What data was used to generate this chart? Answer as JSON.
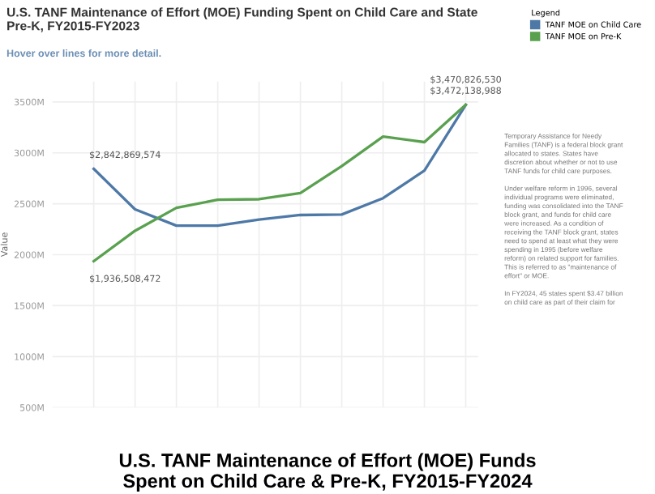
{
  "chart_data": {
    "type": "line",
    "title": "U.S. TANF Maintenance of Effort (MOE) Funding Spent on Child Care and State\nPre-K, FY2015-FY2023",
    "subtitle": "Hover over lines for more detail.",
    "ylabel": "Value",
    "legend_title": "Legend",
    "categories": [
      null,
      null,
      null,
      null,
      null,
      null,
      null,
      null,
      null,
      null
    ],
    "series": [
      {
        "name": "TANF MOE on Child Care",
        "color": "#4e79a7",
        "values": [
          2842869574,
          2445000000,
          2285000000,
          2285000000,
          2345000000,
          2390000000,
          2395000000,
          2555000000,
          2825000000,
          3470826530
        ],
        "value_labels": [
          "$2,842,869,574",
          null,
          null,
          null,
          null,
          null,
          null,
          null,
          null,
          "$3,470,826,530"
        ]
      },
      {
        "name": "TANF MOE on Pre-K",
        "color": "#59a14f",
        "values": [
          1936508472,
          2235000000,
          2460000000,
          2540000000,
          2545000000,
          2605000000,
          2870000000,
          3160000000,
          3105000000,
          3472138988
        ],
        "value_labels": [
          "$1,936,508,472",
          null,
          null,
          null,
          null,
          null,
          null,
          null,
          null,
          "$3,472,138,988"
        ]
      }
    ],
    "ylim": [
      500000000,
      3700000000
    ],
    "yticks": [
      {
        "value": 500000000,
        "label": "500M"
      },
      {
        "value": 1000000000,
        "label": "1000M"
      },
      {
        "value": 1500000000,
        "label": "1500M"
      },
      {
        "value": 2000000000,
        "label": "2000M"
      },
      {
        "value": 2500000000,
        "label": "2500M"
      },
      {
        "value": 3000000000,
        "label": "3000M"
      },
      {
        "value": 3500000000,
        "label": "3500M"
      }
    ],
    "tick_labels": "y",
    "grid": true,
    "legend": "top right",
    "annotations": [
      "Temporary Assistance for Needy\nFamilies (TANF) is a federal block grant\nallocated to states. States have\ndiscretion about whether or not to use\nTANF funds for child care purposes.\n\nUnder welfare reform in 1996, several\nindividual programs were eliminated,\nfunding was consolidated into the TANF\nblock grant, and funds for child care\nwere increased. As a condition of\nreceiving the TANF block grant, states\nneed to spend at least what they were\nspending in 1995 (before welfare\nreform) on related support for families.\nThis is referred to as \"maintenance of\neffort\" or MOE.\n\nIn FY2024, 45 states spent $3.47 billion\non child care as part of their claim for",
      "U.S. TANF Maintenance of Effort (MOE) Funds\nSpent on Child Care & Pre-K, FY2015-FY2024"
    ]
  }
}
